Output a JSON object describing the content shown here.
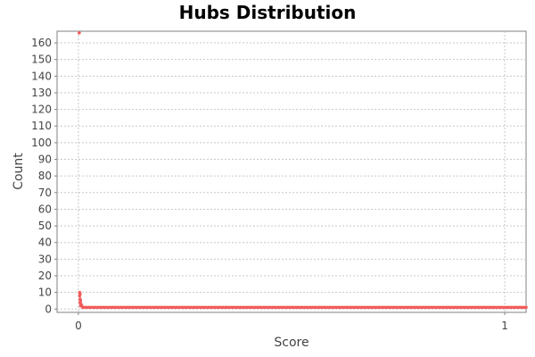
{
  "chart_data": {
    "type": "scatter",
    "title": "Hubs Distribution",
    "xlabel": "Score",
    "ylabel": "Count",
    "xlim": [
      -0.05,
      1.05
    ],
    "ylim": [
      -2,
      167
    ],
    "x_ticks": [
      0,
      1
    ],
    "y_ticks": [
      0,
      10,
      20,
      30,
      40,
      50,
      60,
      70,
      80,
      90,
      100,
      110,
      120,
      130,
      140,
      150,
      160
    ],
    "grid": true,
    "point_color": "#f25a5a",
    "series": [
      {
        "points": [
          [
            0.002,
            166
          ],
          [
            0.003,
            10
          ],
          [
            0.004,
            9
          ],
          [
            0.003,
            8
          ],
          [
            0.004,
            6
          ],
          [
            0.005,
            5
          ],
          [
            0.004,
            4
          ],
          [
            0.006,
            3
          ],
          [
            0.005,
            2
          ],
          [
            0.008,
            2
          ],
          [
            0.01,
            1
          ],
          [
            0.015,
            1
          ],
          [
            0.02,
            1
          ],
          [
            0.025,
            1
          ],
          [
            0.03,
            1
          ],
          [
            0.035,
            1
          ],
          [
            0.04,
            1
          ],
          [
            0.045,
            1
          ],
          [
            0.05,
            1
          ],
          [
            0.055,
            1
          ],
          [
            0.06,
            1
          ],
          [
            0.065,
            1
          ],
          [
            0.07,
            1
          ],
          [
            0.075,
            1
          ],
          [
            0.08,
            1
          ],
          [
            0.085,
            1
          ],
          [
            0.09,
            1
          ],
          [
            0.095,
            1
          ],
          [
            0.1,
            1
          ],
          [
            0.105,
            1
          ],
          [
            0.11,
            1
          ],
          [
            0.115,
            1
          ],
          [
            0.12,
            1
          ],
          [
            0.125,
            1
          ],
          [
            0.13,
            1
          ],
          [
            0.135,
            1
          ],
          [
            0.14,
            1
          ],
          [
            0.145,
            1
          ],
          [
            0.15,
            1
          ],
          [
            0.155,
            1
          ],
          [
            0.16,
            1
          ],
          [
            0.165,
            1
          ],
          [
            0.17,
            1
          ],
          [
            0.175,
            1
          ],
          [
            0.18,
            1
          ],
          [
            0.185,
            1
          ],
          [
            0.19,
            1
          ],
          [
            0.195,
            1
          ],
          [
            0.2,
            1
          ],
          [
            0.205,
            1
          ],
          [
            0.21,
            1
          ],
          [
            0.215,
            1
          ],
          [
            0.22,
            1
          ],
          [
            0.225,
            1
          ],
          [
            0.23,
            1
          ],
          [
            0.235,
            1
          ],
          [
            0.24,
            1
          ],
          [
            0.245,
            1
          ],
          [
            0.25,
            1
          ],
          [
            0.255,
            1
          ],
          [
            0.26,
            1
          ],
          [
            0.265,
            1
          ],
          [
            0.27,
            1
          ],
          [
            0.275,
            1
          ],
          [
            0.28,
            1
          ],
          [
            0.285,
            1
          ],
          [
            0.29,
            1
          ],
          [
            0.295,
            1
          ],
          [
            0.3,
            1
          ],
          [
            0.305,
            1
          ],
          [
            0.31,
            1
          ],
          [
            0.315,
            1
          ],
          [
            0.32,
            1
          ],
          [
            0.325,
            1
          ],
          [
            0.33,
            1
          ],
          [
            0.335,
            1
          ],
          [
            0.34,
            1
          ],
          [
            0.345,
            1
          ],
          [
            0.35,
            1
          ],
          [
            0.355,
            1
          ],
          [
            0.36,
            1
          ],
          [
            0.365,
            1
          ],
          [
            0.37,
            1
          ],
          [
            0.375,
            1
          ],
          [
            0.38,
            1
          ],
          [
            0.385,
            1
          ],
          [
            0.39,
            1
          ],
          [
            0.395,
            1
          ],
          [
            0.4,
            1
          ],
          [
            0.405,
            1
          ],
          [
            0.41,
            1
          ],
          [
            0.415,
            1
          ],
          [
            0.42,
            1
          ],
          [
            0.425,
            1
          ],
          [
            0.43,
            1
          ],
          [
            0.435,
            1
          ],
          [
            0.44,
            1
          ],
          [
            0.445,
            1
          ],
          [
            0.45,
            1
          ],
          [
            0.455,
            1
          ],
          [
            0.46,
            1
          ],
          [
            0.465,
            1
          ],
          [
            0.47,
            1
          ],
          [
            0.475,
            1
          ],
          [
            0.48,
            1
          ],
          [
            0.485,
            1
          ],
          [
            0.49,
            1
          ],
          [
            0.495,
            1
          ],
          [
            0.5,
            1
          ],
          [
            0.505,
            1
          ],
          [
            0.51,
            1
          ],
          [
            0.515,
            1
          ],
          [
            0.52,
            1
          ],
          [
            0.525,
            1
          ],
          [
            0.53,
            1
          ],
          [
            0.535,
            1
          ],
          [
            0.54,
            1
          ],
          [
            0.545,
            1
          ],
          [
            0.55,
            1
          ],
          [
            0.555,
            1
          ],
          [
            0.56,
            1
          ],
          [
            0.565,
            1
          ],
          [
            0.57,
            1
          ],
          [
            0.575,
            1
          ],
          [
            0.58,
            1
          ],
          [
            0.585,
            1
          ],
          [
            0.59,
            1
          ],
          [
            0.595,
            1
          ],
          [
            0.6,
            1
          ],
          [
            0.605,
            1
          ],
          [
            0.61,
            1
          ],
          [
            0.615,
            1
          ],
          [
            0.62,
            1
          ],
          [
            0.625,
            1
          ],
          [
            0.63,
            1
          ],
          [
            0.635,
            1
          ],
          [
            0.64,
            1
          ],
          [
            0.645,
            1
          ],
          [
            0.65,
            1
          ],
          [
            0.655,
            1
          ],
          [
            0.66,
            1
          ],
          [
            0.665,
            1
          ],
          [
            0.67,
            1
          ],
          [
            0.675,
            1
          ],
          [
            0.68,
            1
          ],
          [
            0.685,
            1
          ],
          [
            0.69,
            1
          ],
          [
            0.695,
            1
          ],
          [
            0.7,
            1
          ],
          [
            0.705,
            1
          ],
          [
            0.71,
            1
          ],
          [
            0.715,
            1
          ],
          [
            0.72,
            1
          ],
          [
            0.725,
            1
          ],
          [
            0.73,
            1
          ],
          [
            0.735,
            1
          ],
          [
            0.74,
            1
          ],
          [
            0.745,
            1
          ],
          [
            0.75,
            1
          ],
          [
            0.755,
            1
          ],
          [
            0.76,
            1
          ],
          [
            0.765,
            1
          ],
          [
            0.77,
            1
          ],
          [
            0.775,
            1
          ],
          [
            0.78,
            1
          ],
          [
            0.785,
            1
          ],
          [
            0.79,
            1
          ],
          [
            0.795,
            1
          ],
          [
            0.8,
            1
          ],
          [
            0.805,
            1
          ],
          [
            0.81,
            1
          ],
          [
            0.815,
            1
          ],
          [
            0.82,
            1
          ],
          [
            0.825,
            1
          ],
          [
            0.83,
            1
          ],
          [
            0.835,
            1
          ],
          [
            0.84,
            1
          ],
          [
            0.845,
            1
          ],
          [
            0.85,
            1
          ],
          [
            0.855,
            1
          ],
          [
            0.86,
            1
          ],
          [
            0.865,
            1
          ],
          [
            0.87,
            1
          ],
          [
            0.875,
            1
          ],
          [
            0.88,
            1
          ],
          [
            0.885,
            1
          ],
          [
            0.89,
            1
          ],
          [
            0.895,
            1
          ],
          [
            0.9,
            1
          ],
          [
            0.905,
            1
          ],
          [
            0.91,
            1
          ],
          [
            0.915,
            1
          ],
          [
            0.92,
            1
          ],
          [
            0.925,
            1
          ],
          [
            0.93,
            1
          ],
          [
            0.935,
            1
          ],
          [
            0.94,
            1
          ],
          [
            0.945,
            1
          ],
          [
            0.95,
            1
          ],
          [
            0.955,
            1
          ],
          [
            0.96,
            1
          ],
          [
            0.965,
            1
          ],
          [
            0.97,
            1
          ],
          [
            0.975,
            1
          ],
          [
            0.98,
            1
          ],
          [
            0.985,
            1
          ],
          [
            0.99,
            1
          ],
          [
            0.995,
            1
          ],
          [
            1.0,
            1
          ],
          [
            1.005,
            1
          ],
          [
            1.01,
            1
          ],
          [
            1.015,
            1
          ],
          [
            1.02,
            1
          ],
          [
            1.025,
            1
          ],
          [
            1.03,
            1
          ],
          [
            1.035,
            1
          ],
          [
            1.04,
            1
          ],
          [
            1.045,
            1
          ],
          [
            1.05,
            1
          ]
        ]
      }
    ]
  }
}
